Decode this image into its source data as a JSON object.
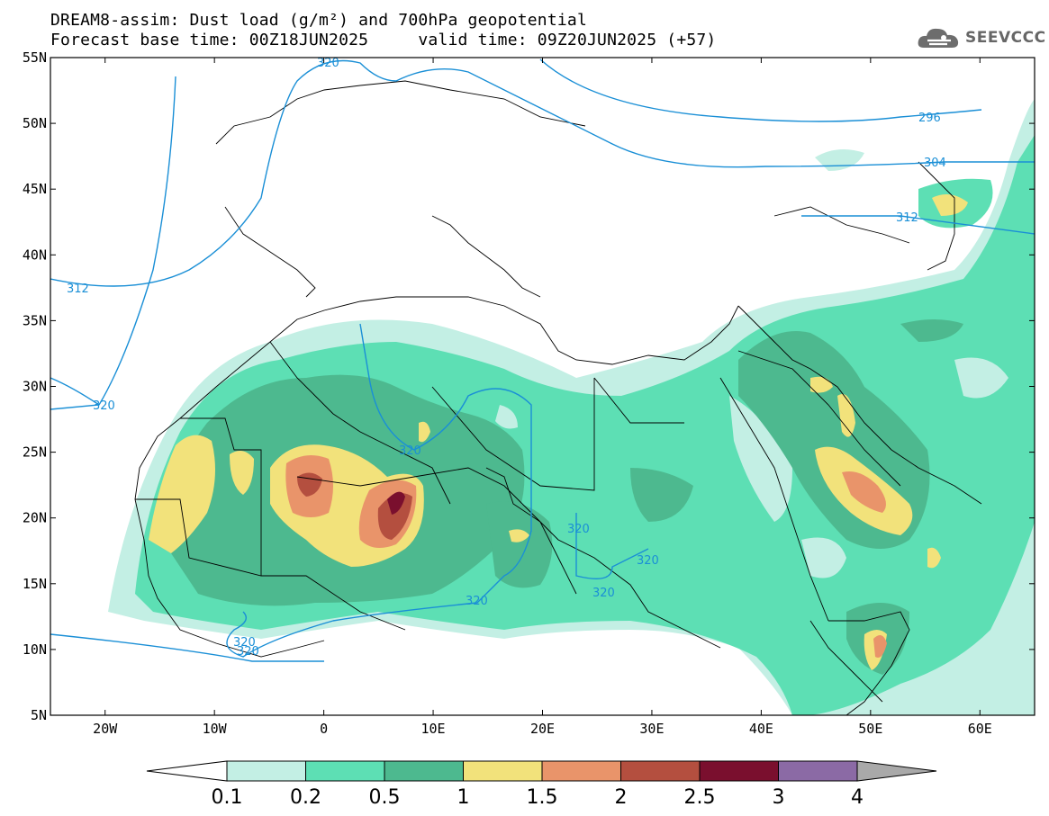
{
  "title": {
    "line1": "DREAM8-assim: Dust load (g/m²) and 700hPa geopotential",
    "line2": "Forecast base time: 00Z18JUN2025     valid time: 09Z20JUN2025 (+57)"
  },
  "logo": {
    "text": "SEEVCCC",
    "icon": "cloud-logo-icon"
  },
  "axes": {
    "lat_labels": [
      "55N",
      "50N",
      "45N",
      "40N",
      "35N",
      "30N",
      "25N",
      "20N",
      "15N",
      "10N",
      "5N"
    ],
    "lon_labels": [
      "20W",
      "10W",
      "0",
      "10E",
      "20E",
      "30E",
      "40E",
      "50E",
      "60E"
    ],
    "lon_range": [
      -25,
      65
    ],
    "lat_range": [
      5,
      55
    ]
  },
  "contour_labels": [
    "320",
    "296",
    "304",
    "312",
    "312",
    "320",
    "320",
    "320",
    "320",
    "320",
    "320",
    "320",
    "320"
  ],
  "colorbar": {
    "labels": [
      "0.1",
      "0.2",
      "0.5",
      "1",
      "1.5",
      "2",
      "2.5",
      "3",
      "4"
    ],
    "colors": [
      "#ffffff",
      "#c3efe4",
      "#5ddfb4",
      "#4db98f",
      "#f2e27b",
      "#e9946a",
      "#b44f3f",
      "#7a0f2e",
      "#8b6aa5",
      "#a9a9a9"
    ]
  },
  "palette": {
    "c1": "#c3efe4",
    "c2": "#5ddfb4",
    "c3": "#4db98f",
    "c4": "#f2e27b",
    "c5": "#e9946a",
    "c6": "#b44f3f",
    "c7": "#7a0f2e",
    "contour": "#1a8fd6"
  }
}
